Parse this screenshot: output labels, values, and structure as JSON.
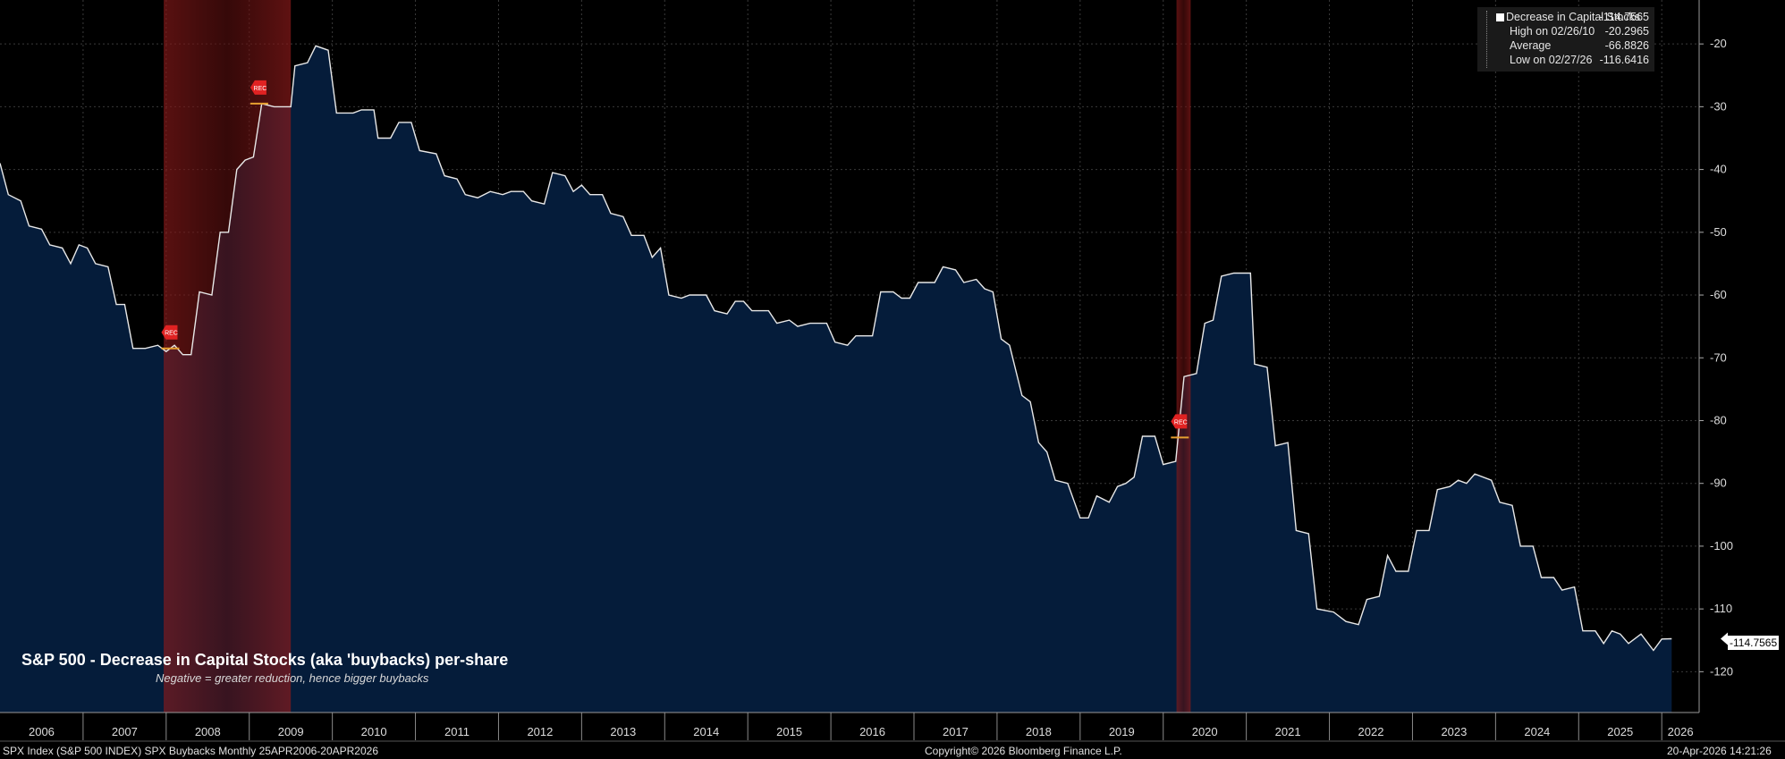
{
  "chart_data": {
    "type": "area",
    "overlay_title": "S&P 500 - Decrease in Capital Stocks (aka 'buybacks) per-share",
    "overlay_subtitle": "Negative = greater reduction, hence bigger buybacks",
    "y_ticks": [
      -20,
      -30,
      -40,
      -50,
      -60,
      -70,
      -80,
      -90,
      -100,
      -110,
      -120
    ],
    "y_tick_labels": [
      "-20",
      "-30",
      "-40",
      "-50",
      "-60",
      "-70",
      "-80",
      "-90",
      "-100",
      "-110",
      "-120"
    ],
    "ylim": [
      -126.5,
      -13
    ],
    "xlim": [
      2006.0,
      2026.45
    ],
    "x_tick_labels": [
      "2006",
      "2007",
      "2008",
      "2009",
      "2010",
      "2011",
      "2012",
      "2013",
      "2014",
      "2015",
      "2016",
      "2017",
      "2018",
      "2019",
      "2020",
      "2021",
      "2022",
      "2023",
      "2024",
      "2025",
      "2026"
    ],
    "grid": true,
    "legend_position": "top-right",
    "series": [
      {
        "name": "Decrease in Capital Stocks",
        "last_value": "-114.7565",
        "points": [
          [
            2006.0,
            -39
          ],
          [
            2006.1,
            -44
          ],
          [
            2006.25,
            -45
          ],
          [
            2006.35,
            -49
          ],
          [
            2006.5,
            -49.5
          ],
          [
            2006.6,
            -52
          ],
          [
            2006.75,
            -52.5
          ],
          [
            2006.85,
            -55
          ],
          [
            2006.95,
            -52
          ],
          [
            2007.05,
            -52.5
          ],
          [
            2007.15,
            -55
          ],
          [
            2007.3,
            -55.5
          ],
          [
            2007.4,
            -61.5
          ],
          [
            2007.5,
            -61.5
          ],
          [
            2007.6,
            -68.5
          ],
          [
            2007.75,
            -68.5
          ],
          [
            2007.9,
            -68
          ],
          [
            2008.0,
            -69
          ],
          [
            2008.1,
            -68
          ],
          [
            2008.2,
            -69.5
          ],
          [
            2008.3,
            -69.5
          ],
          [
            2008.4,
            -59.5
          ],
          [
            2008.55,
            -60
          ],
          [
            2008.65,
            -50
          ],
          [
            2008.75,
            -50
          ],
          [
            2008.85,
            -40
          ],
          [
            2008.95,
            -38.5
          ],
          [
            2009.05,
            -38
          ],
          [
            2009.15,
            -29.5
          ],
          [
            2009.3,
            -30
          ],
          [
            2009.5,
            -30
          ],
          [
            2009.55,
            -23.5
          ],
          [
            2009.7,
            -23
          ],
          [
            2009.8,
            -20.3
          ],
          [
            2009.95,
            -21
          ],
          [
            2010.05,
            -31
          ],
          [
            2010.25,
            -31
          ],
          [
            2010.35,
            -30.5
          ],
          [
            2010.5,
            -30.5
          ],
          [
            2010.55,
            -35
          ],
          [
            2010.7,
            -35
          ],
          [
            2010.8,
            -32.5
          ],
          [
            2010.95,
            -32.5
          ],
          [
            2011.05,
            -37
          ],
          [
            2011.25,
            -37.5
          ],
          [
            2011.35,
            -41
          ],
          [
            2011.5,
            -41.5
          ],
          [
            2011.6,
            -44
          ],
          [
            2011.75,
            -44.5
          ],
          [
            2011.9,
            -43.5
          ],
          [
            2012.05,
            -44
          ],
          [
            2012.15,
            -43.5
          ],
          [
            2012.3,
            -43.5
          ],
          [
            2012.4,
            -45
          ],
          [
            2012.55,
            -45.5
          ],
          [
            2012.65,
            -40.5
          ],
          [
            2012.8,
            -41
          ],
          [
            2012.9,
            -43.5
          ],
          [
            2013.0,
            -42.5
          ],
          [
            2013.1,
            -44
          ],
          [
            2013.25,
            -44
          ],
          [
            2013.35,
            -47
          ],
          [
            2013.5,
            -47.5
          ],
          [
            2013.6,
            -50.5
          ],
          [
            2013.75,
            -50.5
          ],
          [
            2013.85,
            -54
          ],
          [
            2013.95,
            -52.5
          ],
          [
            2014.05,
            -60
          ],
          [
            2014.2,
            -60.5
          ],
          [
            2014.3,
            -60
          ],
          [
            2014.5,
            -60
          ],
          [
            2014.6,
            -62.5
          ],
          [
            2014.75,
            -63
          ],
          [
            2014.85,
            -61
          ],
          [
            2014.95,
            -61
          ],
          [
            2015.05,
            -62.5
          ],
          [
            2015.25,
            -62.5
          ],
          [
            2015.35,
            -64.5
          ],
          [
            2015.5,
            -64
          ],
          [
            2015.6,
            -65
          ],
          [
            2015.75,
            -64.5
          ],
          [
            2015.85,
            -64.5
          ],
          [
            2015.95,
            -64.5
          ],
          [
            2016.05,
            -67.5
          ],
          [
            2016.2,
            -68
          ],
          [
            2016.3,
            -66.5
          ],
          [
            2016.5,
            -66.5
          ],
          [
            2016.6,
            -59.5
          ],
          [
            2016.75,
            -59.5
          ],
          [
            2016.85,
            -60.5
          ],
          [
            2016.95,
            -60.5
          ],
          [
            2017.05,
            -58
          ],
          [
            2017.25,
            -58
          ],
          [
            2017.35,
            -55.5
          ],
          [
            2017.5,
            -56
          ],
          [
            2017.6,
            -58
          ],
          [
            2017.75,
            -57.5
          ],
          [
            2017.85,
            -59
          ],
          [
            2017.95,
            -59.5
          ],
          [
            2018.05,
            -67
          ],
          [
            2018.15,
            -68
          ],
          [
            2018.3,
            -76
          ],
          [
            2018.4,
            -77
          ],
          [
            2018.5,
            -83.5
          ],
          [
            2018.6,
            -85
          ],
          [
            2018.7,
            -89.5
          ],
          [
            2018.85,
            -90
          ],
          [
            2019.0,
            -95.5
          ],
          [
            2019.1,
            -95.5
          ],
          [
            2019.2,
            -92
          ],
          [
            2019.35,
            -93
          ],
          [
            2019.45,
            -90.5
          ],
          [
            2019.55,
            -90
          ],
          [
            2019.65,
            -89
          ],
          [
            2019.75,
            -82.5
          ],
          [
            2019.9,
            -82.5
          ],
          [
            2020.0,
            -87
          ],
          [
            2020.15,
            -86.5
          ],
          [
            2020.25,
            -73
          ],
          [
            2020.4,
            -72.5
          ],
          [
            2020.5,
            -64.5
          ],
          [
            2020.6,
            -64
          ],
          [
            2020.7,
            -57
          ],
          [
            2020.85,
            -56.5
          ],
          [
            2021.05,
            -56.5
          ],
          [
            2021.1,
            -71
          ],
          [
            2021.25,
            -71.5
          ],
          [
            2021.35,
            -84
          ],
          [
            2021.5,
            -83.5
          ],
          [
            2021.6,
            -97.5
          ],
          [
            2021.75,
            -98
          ],
          [
            2021.85,
            -110
          ],
          [
            2022.05,
            -110.5
          ],
          [
            2022.2,
            -112
          ],
          [
            2022.35,
            -112.5
          ],
          [
            2022.45,
            -108.5
          ],
          [
            2022.6,
            -108
          ],
          [
            2022.7,
            -101.5
          ],
          [
            2022.8,
            -104
          ],
          [
            2022.95,
            -104
          ],
          [
            2023.05,
            -97.5
          ],
          [
            2023.2,
            -97.5
          ],
          [
            2023.3,
            -91
          ],
          [
            2023.45,
            -90.5
          ],
          [
            2023.55,
            -89.5
          ],
          [
            2023.65,
            -90
          ],
          [
            2023.75,
            -88.5
          ],
          [
            2023.95,
            -89.5
          ],
          [
            2024.05,
            -93
          ],
          [
            2024.2,
            -93.5
          ],
          [
            2024.3,
            -100
          ],
          [
            2024.45,
            -100
          ],
          [
            2024.55,
            -105
          ],
          [
            2024.7,
            -105
          ],
          [
            2024.8,
            -107
          ],
          [
            2024.95,
            -106.5
          ],
          [
            2025.05,
            -113.5
          ],
          [
            2025.2,
            -113.5
          ],
          [
            2025.3,
            -115.5
          ],
          [
            2025.4,
            -113.5
          ],
          [
            2025.5,
            -114
          ],
          [
            2025.6,
            -115.5
          ],
          [
            2025.75,
            -114
          ],
          [
            2025.9,
            -116.6
          ],
          [
            2026.0,
            -114.8
          ],
          [
            2026.12,
            -114.7565
          ]
        ]
      }
    ],
    "recessions": [
      [
        2007.97,
        2009.5
      ],
      [
        2020.16,
        2020.33
      ]
    ],
    "recession_markers": [
      {
        "label": "REC",
        "x": 2008.05,
        "y": -68.5
      },
      {
        "label": "REC",
        "x": 2009.12,
        "y": -29.5
      },
      {
        "label": "REC",
        "x": 2020.2,
        "y": -82.7
      }
    ],
    "legend": {
      "rows": [
        {
          "label": "Decrease in Capital Stocks",
          "value": "-114.7565"
        },
        {
          "label": "High on 02/26/10",
          "value": "-20.2965"
        },
        {
          "label": "Average",
          "value": "-66.8826"
        },
        {
          "label": "Low on 02/27/26",
          "value": "-116.6416"
        }
      ]
    },
    "colors": {
      "background": "#000000",
      "area_fill": "#051c3a",
      "line": "#e8e8e8",
      "recession": "#8b1a1a",
      "marker": "#e02222",
      "grid": "#3a3a3a"
    }
  },
  "footer": {
    "left": "SPX Index (S&P 500 INDEX) SPX Buybacks Monthly 25APR2006-20APR2026",
    "center": "Copyright© 2026 Bloomberg Finance L.P.",
    "right": "20-Apr-2026 14:21:26"
  }
}
